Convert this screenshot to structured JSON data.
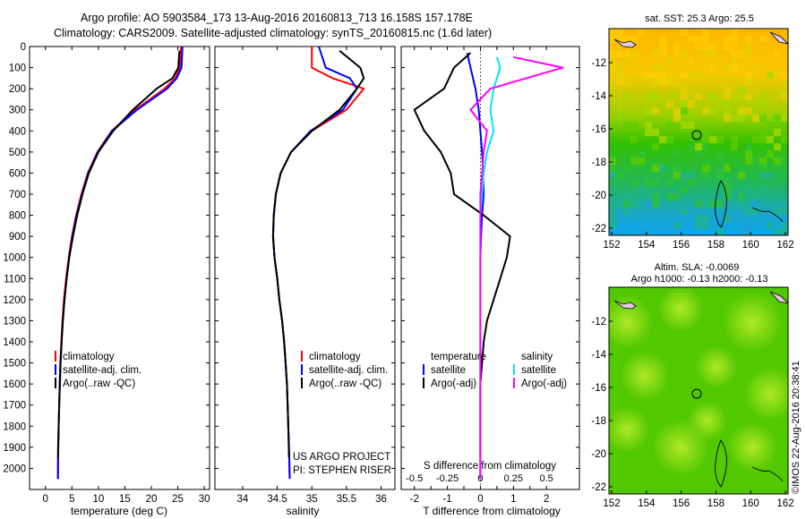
{
  "header": {
    "line1": "Argo profile: AO 5903584_173 13-Aug-2016 20160813_713 16.158S 157.178E",
    "line2": "Climatology: CARS2009. Satellite-adjusted climatology: synTS_20160815.nc (1.6d later)"
  },
  "colors": {
    "climatology": "#ff0000",
    "satellite": "#0000ff",
    "argo": "#000000",
    "salinity_sat": "#00e5ff",
    "salinity_argo": "#ff00ff"
  },
  "chart_data": [
    {
      "type": "line",
      "id": "temperature",
      "xlabel": "temperature (deg C)",
      "xlim": [
        -3,
        31
      ],
      "ylim": [
        2100,
        0
      ],
      "xticks": [
        0,
        5,
        10,
        15,
        20,
        25,
        30
      ],
      "yticks": [
        0,
        100,
        200,
        300,
        400,
        500,
        600,
        700,
        800,
        900,
        1000,
        1100,
        1200,
        1300,
        1400,
        1500,
        1600,
        1700,
        1800,
        1900,
        2000
      ],
      "legend": [
        "climatology",
        "satellite-adj. clim.",
        "Argo(..raw -QC)"
      ],
      "series": [
        {
          "name": "climatology",
          "color": "#ff0000",
          "x": [
            25.6,
            25.4,
            24.5,
            22.5,
            17.0,
            12.5,
            9.8,
            8.0,
            6.8,
            5.8,
            5.0,
            4.4,
            3.9,
            3.5,
            3.2,
            3.0,
            2.8,
            2.7,
            2.6,
            2.5,
            2.4,
            2.4
          ],
          "y": [
            0,
            100,
            150,
            200,
            300,
            400,
            500,
            600,
            700,
            800,
            900,
            1000,
            1100,
            1200,
            1300,
            1400,
            1500,
            1600,
            1700,
            1800,
            1900,
            2050
          ]
        },
        {
          "name": "satellite-adj. clim.",
          "color": "#0000ff",
          "x": [
            25.9,
            25.7,
            24.8,
            23.0,
            17.3,
            12.6,
            9.9,
            8.1,
            6.9,
            5.9,
            5.1,
            4.5,
            4.0,
            3.6,
            3.3,
            3.05,
            2.85,
            2.75,
            2.6,
            2.5,
            2.4,
            2.35
          ],
          "y": [
            0,
            100,
            150,
            200,
            300,
            400,
            500,
            600,
            700,
            800,
            900,
            1000,
            1100,
            1200,
            1300,
            1400,
            1500,
            1600,
            1700,
            1800,
            1900,
            2050
          ]
        },
        {
          "name": "Argo(..raw -QC)",
          "color": "#000000",
          "x": [
            25.3,
            25.1,
            24.0,
            21.0,
            16.5,
            12.8,
            10.0,
            8.2,
            7.0,
            6.0,
            5.2,
            4.5,
            4.0,
            3.6,
            3.3,
            3.05,
            2.85,
            2.7,
            2.6,
            2.5,
            2.4
          ],
          "y": [
            20,
            100,
            150,
            200,
            300,
            400,
            500,
            600,
            700,
            800,
            900,
            1000,
            1100,
            1200,
            1300,
            1400,
            1500,
            1600,
            1700,
            1800,
            1950
          ]
        }
      ]
    },
    {
      "type": "line",
      "id": "salinity",
      "xlabel": "salinity",
      "xlim": [
        33.6,
        36.2
      ],
      "ylim": [
        2100,
        0
      ],
      "xticks": [
        34,
        34.5,
        35,
        35.5,
        36
      ],
      "legend": [
        "climatology",
        "satellite-adj. clim.",
        "Argo(..raw -QC)"
      ],
      "series": [
        {
          "name": "climatology",
          "color": "#ff0000",
          "x": [
            35.0,
            35.0,
            35.3,
            35.75,
            35.5,
            35.0,
            34.7,
            34.55,
            34.48,
            34.45,
            34.44,
            34.46,
            34.5,
            34.53,
            34.57,
            34.6,
            34.62,
            34.64,
            34.65,
            34.66,
            34.67,
            34.68
          ],
          "y": [
            0,
            100,
            150,
            200,
            300,
            400,
            500,
            600,
            700,
            800,
            900,
            1000,
            1100,
            1200,
            1300,
            1400,
            1500,
            1600,
            1700,
            1800,
            1900,
            2050
          ]
        },
        {
          "name": "satellite-adj. clim.",
          "color": "#0000ff",
          "x": [
            35.1,
            35.2,
            35.55,
            35.65,
            35.45,
            34.98,
            34.7,
            34.55,
            34.48,
            34.45,
            34.44,
            34.46,
            34.5,
            34.53,
            34.57,
            34.6,
            34.62,
            34.64,
            34.65,
            34.66,
            34.67,
            34.68
          ],
          "y": [
            0,
            100,
            150,
            200,
            300,
            400,
            500,
            600,
            700,
            800,
            900,
            1000,
            1100,
            1200,
            1300,
            1400,
            1500,
            1600,
            1700,
            1800,
            1900,
            2050
          ]
        },
        {
          "name": "Argo(..raw -QC)",
          "color": "#000000",
          "x": [
            35.4,
            35.7,
            35.75,
            35.65,
            35.4,
            35.0,
            34.7,
            34.55,
            34.48,
            34.45,
            34.44,
            34.46,
            34.5,
            34.53,
            34.57,
            34.6,
            34.62,
            34.64,
            34.65,
            34.66,
            34.67
          ],
          "y": [
            20,
            100,
            150,
            200,
            300,
            400,
            500,
            600,
            700,
            800,
            900,
            1000,
            1100,
            1200,
            1300,
            1400,
            1500,
            1600,
            1700,
            1800,
            1950
          ]
        }
      ],
      "annotations": [
        "US ARGO PROJECT",
        "PI: STEPHEN RISER"
      ]
    },
    {
      "type": "line",
      "id": "difference",
      "xlabel": "T difference from climatology",
      "xlabel_top": "S difference from climatology",
      "xlim": [
        -2.4,
        3.0
      ],
      "ylim": [
        2100,
        0
      ],
      "xticks": [
        -2,
        -1.5,
        -1,
        -0.5,
        0,
        0.5,
        1,
        1.5,
        2
      ],
      "xticklabels": [
        "-2",
        "",
        "-1",
        "",
        "0",
        "",
        "1",
        "",
        "2"
      ],
      "s_ticks": [
        -0.5,
        -0.25,
        0,
        0.25,
        0.5
      ],
      "legend_title_left": "temperature",
      "legend_title_right": "salinity",
      "legend": [
        "satellite",
        "Argo(-adj)",
        "satellite",
        "Argo(-adj)"
      ],
      "series": [
        {
          "name": "satellite",
          "color": "#0000ff",
          "x": [
            -0.4,
            -0.3,
            -0.15,
            -0.05,
            0.0,
            0.05,
            0.08,
            0.1,
            0.05,
            0.02,
            0.0,
            0.0,
            0.0,
            0.0,
            0.0,
            0.0,
            0.0,
            0.0,
            0.0,
            0.0
          ],
          "y": [
            30,
            100,
            200,
            300,
            400,
            500,
            600,
            700,
            800,
            900,
            1000,
            1100,
            1200,
            1300,
            1400,
            1500,
            1600,
            1700,
            1800,
            2050
          ]
        },
        {
          "name": "Argo(-adj)",
          "color": "#000000",
          "x": [
            -0.3,
            -0.8,
            -1.1,
            -2.0,
            -1.7,
            -1.2,
            -0.9,
            -0.8,
            0.1,
            0.9,
            0.8,
            0.6,
            0.4,
            0.2,
            0.1,
            0.05,
            0.0,
            0.0,
            0.0,
            0.0
          ],
          "y": [
            30,
            100,
            200,
            300,
            400,
            500,
            600,
            700,
            800,
            900,
            1000,
            1100,
            1200,
            1300,
            1400,
            1500,
            1600,
            1700,
            1800,
            2050
          ]
        },
        {
          "name": "satellite",
          "color": "#00e5ff",
          "x": [
            0.5,
            0.6,
            0.4,
            0.3,
            0.4,
            0.2,
            0.1,
            0.05,
            0.0,
            0.0,
            0.0,
            0.0,
            0.0,
            0.0,
            0.0
          ],
          "y": [
            50,
            100,
            200,
            300,
            400,
            500,
            600,
            700,
            800,
            900,
            1000,
            1100,
            1200,
            1400,
            2050
          ]
        },
        {
          "name": "Argo(-adj)",
          "color": "#ff00ff",
          "x": [
            1.0,
            2.5,
            0.3,
            -0.3,
            0.2,
            0.1,
            0.05,
            0.0,
            0.0,
            0.0,
            0.0,
            0.0,
            0.0
          ],
          "y": [
            50,
            100,
            200,
            300,
            400,
            500,
            600,
            700,
            800,
            900,
            1000,
            1200,
            2050
          ]
        }
      ]
    }
  ],
  "maps": {
    "sst": {
      "title": "sat. SST: 25.3 Argo: 25.5",
      "xticks": [
        "152",
        "154",
        "156",
        "158",
        "160",
        "162"
      ],
      "yticks": [
        "-12",
        "-14",
        "-16",
        "-18",
        "-20",
        "-22"
      ]
    },
    "sla": {
      "title1": "Altim. SLA: -0.0069",
      "title2": "Argo h1000: -0.13 h2000: -0.13",
      "xticks": [
        "152",
        "154",
        "156",
        "158",
        "160",
        "162"
      ],
      "yticks": [
        "-12",
        "-14",
        "-16",
        "-18",
        "-20",
        "-22"
      ]
    },
    "credit": "©IMOS 22-Aug-2016 20:38:41"
  }
}
